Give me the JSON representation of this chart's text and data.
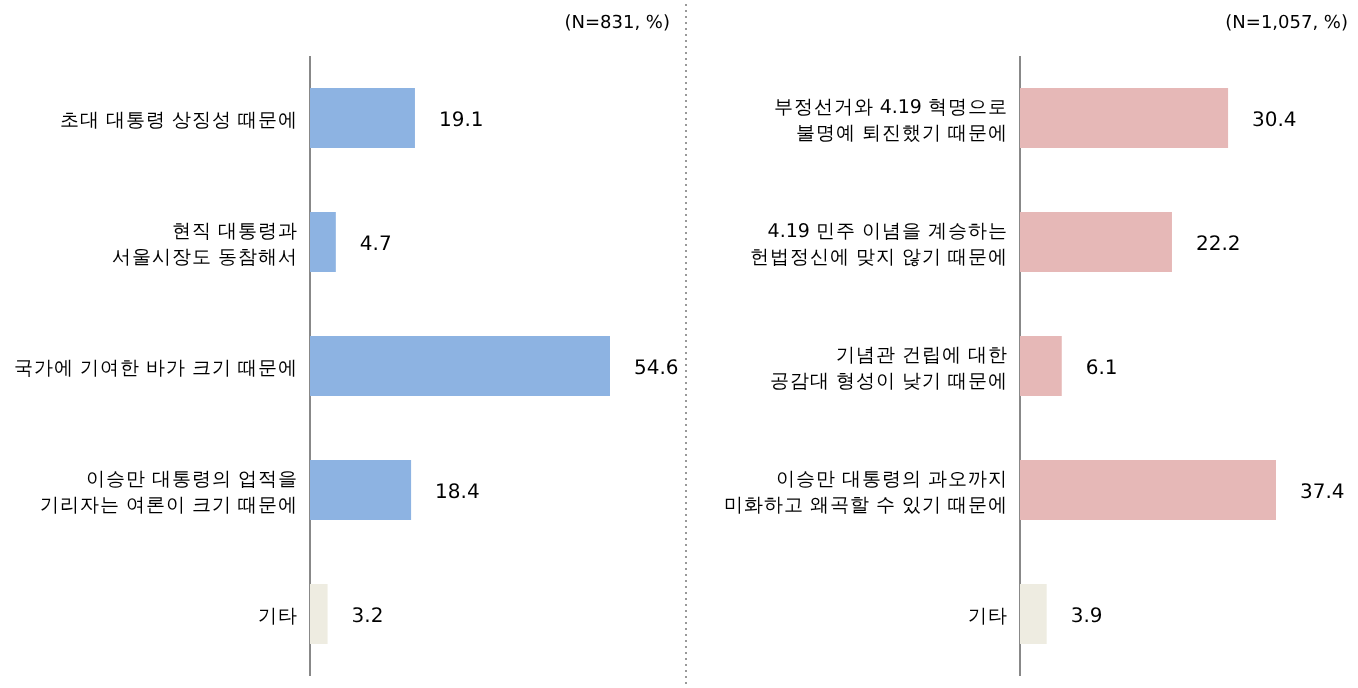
{
  "chart_data": [
    {
      "type": "bar",
      "orientation": "horizontal",
      "annotations": [
        "(N=831, %)"
      ],
      "categories": [
        "초대 대통령 상징성 때문에",
        "현직 대통령과\n서울시장도 동참해서",
        "국가에 기여한 바가 크기 때문에",
        "이승만 대통령의 업적을\n기리자는 여론이 크기 때문에",
        "기타"
      ],
      "values": [
        19.1,
        4.7,
        54.6,
        18.4,
        3.2
      ],
      "colors": [
        "#8db3e2",
        "#8db3e2",
        "#8db3e2",
        "#8db3e2",
        "#eeece1"
      ],
      "data_labels": true
    },
    {
      "type": "bar",
      "orientation": "horizontal",
      "annotations": [
        "(N=1,057, %)"
      ],
      "categories": [
        "부정선거와 4.19 혁명으로\n불명예 퇴진했기 때문에",
        "4.19 민주 이념을 계승하는\n헌법정신에 맞지 않기 때문에",
        "기념관 건립에 대한\n공감대 형성이 낮기 때문에",
        "이승만 대통령의 과오까지\n미화하고 왜곡할 수 있기 때문에",
        "기타"
      ],
      "values": [
        30.4,
        22.2,
        6.1,
        37.4,
        3.9
      ],
      "colors": [
        "#e6b8b7",
        "#e6b8b7",
        "#e6b8b7",
        "#e6b8b7",
        "#eeece1"
      ],
      "data_labels": true
    }
  ]
}
